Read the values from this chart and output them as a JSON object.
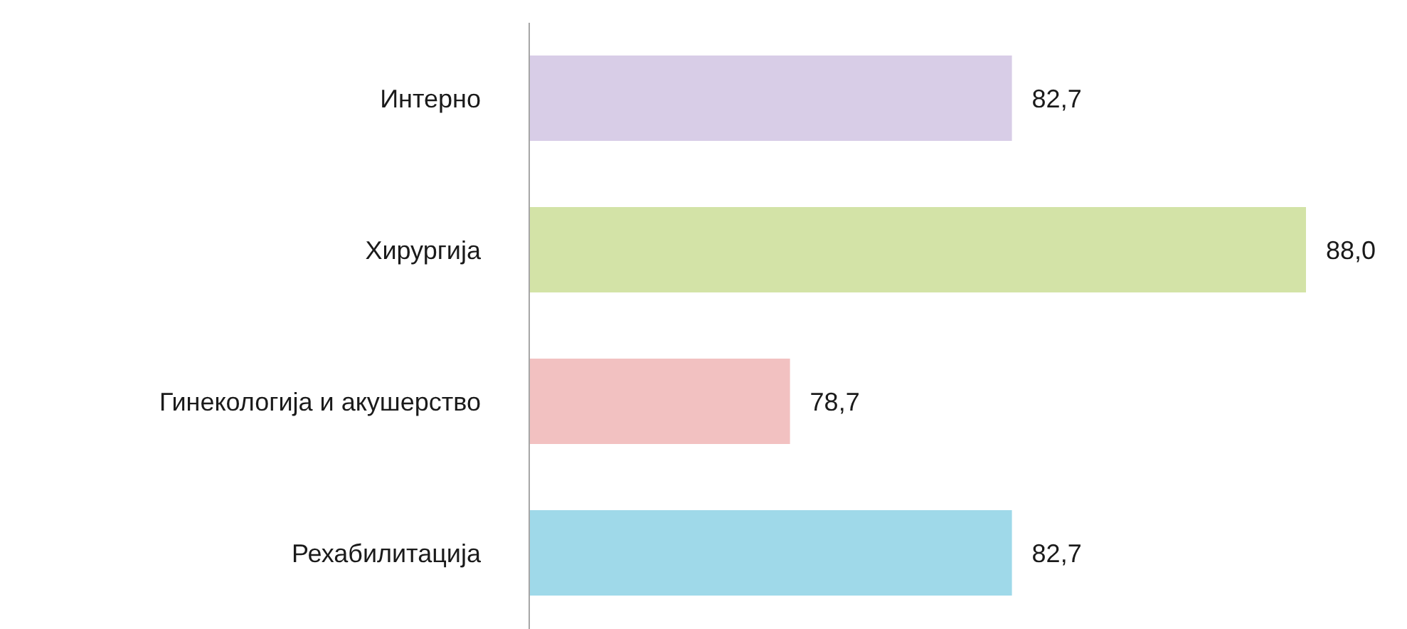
{
  "chart_data": {
    "type": "bar",
    "orientation": "horizontal",
    "categories": [
      "Интерно",
      "Хирургија",
      "Гинекологија и акушерство",
      "Рехабилитација"
    ],
    "values": [
      82.7,
      88.0,
      78.7,
      82.7
    ],
    "colors": [
      "#d8cde7",
      "#d3e3a7",
      "#f2c1c1",
      "#9fd9e9"
    ],
    "value_labels": [
      "82,7",
      "88,0",
      "78,7",
      "82,7"
    ],
    "xlim": [
      74,
      88
    ],
    "tick_labels": "y"
  }
}
